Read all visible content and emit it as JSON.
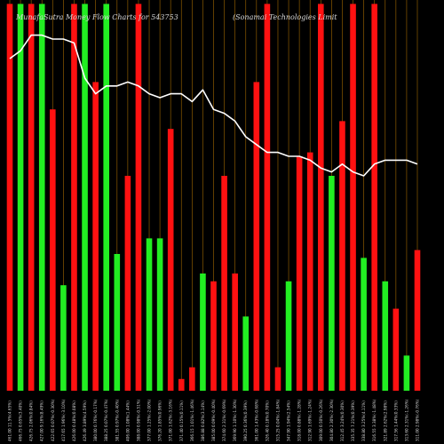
{
  "chart_data": {
    "type": "bar",
    "title_left": "MunafaSutra  Money Flow  Charts for 543753",
    "title_right": "(Sonamai  Technologies Limit",
    "colors": {
      "background": "#000000",
      "up": "#22ee22",
      "down": "#ff1111",
      "line": "#ffffff",
      "grid": "#8b5a00",
      "text": "#d8d8d8"
    },
    "categories": [
      "461.00 11.5%(4.65%)",
      "466.75 0.65%(3.40%)",
      "426.75 2.06%(0.84%)",
      "427.00 9.16%(8.49%)",
      "422.65 0.07%(-0.30%)",
      "417.65 1.96%(-3.10%)",
      "426.00 0.48%(0.08%)",
      "426.49 3.89%(4.59%)",
      "380.00 0.76%(-0.17%)",
      "388.25 0.07%(-0.47%)",
      "381.55 0.97%(-0.40%)",
      "406.00 1.08%(1.44%)",
      "388.00 0.98%(-0.51%)",
      "377.00 1.25%(-2.00%)",
      "376.20 1.85%(0.96%)",
      "371.00 1.62%(-3.16%)",
      "371.40 0.15%(0.11%)",
      "366.15 1.01%(-1.46%)",
      "386.88 0.82%(3.14%)",
      "385.00 0.09%(-0.40%)",
      "374.60 2.31%(-0.69%)",
      "369.90 1.10%(-1.30%)",
      "390.25 0.36%(0.39%)",
      "361.00 1.43%(-0.68%)",
      "326.40 0.18%(0.70%)",
      "315.25 0.04%(-1.84%)",
      "347.90 1.94%(2.54%)",
      "318.00 0.88%(-1.28%)",
      "312.90 1.69%(-1.24%)",
      "309.00 0.50%(-0.26%)",
      "304.80 2.30%(-2.30%)",
      "312.45 3.24%(0.30%)",
      "335.35 7.21%(0.39%)",
      "338.80 3.25%(4.11%)",
      "316.55 3.38%(-1.48%)",
      "321.89 2.62%(2.98%)",
      "317.56 1.44%(0.33%)",
      "313.60 2.31%(-1.26%)",
      "311.00 2.98%(-0.76%)"
    ],
    "values": [
      99,
      99,
      99,
      99,
      72,
      27,
      99,
      99,
      79,
      99,
      35,
      55,
      99,
      39,
      39,
      67,
      3,
      6,
      30,
      28,
      55,
      30,
      19,
      79,
      99,
      6,
      28,
      60,
      61,
      99,
      55,
      69,
      99,
      34,
      99,
      28,
      21,
      9,
      36
    ],
    "directions": [
      "down",
      "up",
      "down",
      "up",
      "down",
      "up",
      "down",
      "up",
      "down",
      "up",
      "up",
      "down",
      "down",
      "up",
      "up",
      "down",
      "down",
      "down",
      "up",
      "down",
      "down",
      "down",
      "up",
      "down",
      "down",
      "down",
      "up",
      "down",
      "down",
      "down",
      "up",
      "down",
      "down",
      "up",
      "down",
      "up",
      "down",
      "up",
      "down"
    ],
    "line_values": [
      85,
      87,
      91,
      91,
      90,
      90,
      89,
      80,
      76,
      78,
      78,
      79,
      78,
      76,
      75,
      76,
      76,
      74,
      77,
      72,
      71,
      69,
      65,
      63,
      61,
      61,
      60,
      60,
      59,
      57,
      56,
      58,
      56,
      55,
      58,
      59,
      59,
      59,
      58
    ],
    "ylim": [
      0,
      100
    ],
    "grid": true,
    "xlabel": "",
    "ylabel": ""
  }
}
